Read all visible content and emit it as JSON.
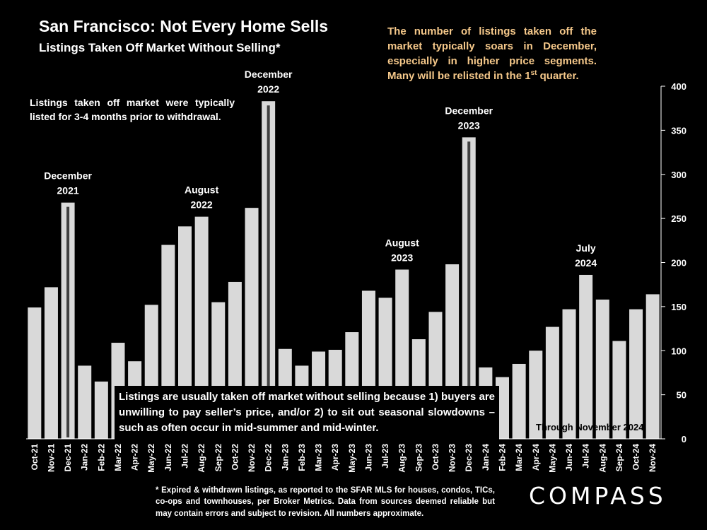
{
  "title": "San Francisco: Not Every Home Sells",
  "subtitle": "Listings Taken Off Market Without Selling*",
  "notes": {
    "top_right_main": "The number of listings taken off the market typically soars in December, especially in higher price segments. Many will be relisted in the 1",
    "top_right_sup": "st",
    "top_right_end": " quarter.",
    "left": "Listings taken off market were typically listed for 3-4 months prior to withdrawal.",
    "bottom": "Listings are usually taken off market without selling because 1) buyers are unwilling to pay seller’s price, and/or 2) to sit out seasonal slowdowns – such as often occur in mid-summer and mid-winter.",
    "through": "Through November 2024"
  },
  "footnote": "* Expired & withdrawn listings, as reported to the SFAR MLS for houses, condos, TICs, co-ops and townhouses, per Broker Metrics. Data from sources deemed reliable but may contain errors and subject to revision. All numbers approximate.",
  "logo": "COMPASS",
  "chart_data": {
    "type": "bar",
    "categories": [
      "Oct-21",
      "Nov-21",
      "Dec-21",
      "Jan-22",
      "Feb-22",
      "Mar-22",
      "Apr-22",
      "May-22",
      "Jun-22",
      "Jul-22",
      "Aug-22",
      "Sep-22",
      "Oct-22",
      "Nov-22",
      "Dec-22",
      "Jan-23",
      "Feb-23",
      "Mar-23",
      "Apr-23",
      "May-23",
      "Jun-23",
      "Jul-23",
      "Aug-23",
      "Sep-23",
      "Oct-23",
      "Nov-23",
      "Dec-23",
      "Jan-24",
      "Feb-24",
      "Mar-24",
      "Apr-24",
      "May-24",
      "Jun-24",
      "Jul-24",
      "Aug-24",
      "Sep-24",
      "Oct-24",
      "Nov-24"
    ],
    "values": [
      149,
      172,
      268,
      83,
      65,
      109,
      88,
      152,
      220,
      241,
      252,
      155,
      178,
      262,
      383,
      102,
      83,
      99,
      101,
      121,
      168,
      160,
      192,
      113,
      144,
      198,
      342,
      81,
      70,
      85,
      100,
      127,
      147,
      186,
      158,
      111,
      147,
      164
    ],
    "highlighted": [
      "Dec-21",
      "Dec-22",
      "Dec-23"
    ],
    "ylim": [
      0,
      400
    ],
    "yticks": [
      0,
      50,
      100,
      150,
      200,
      250,
      300,
      350,
      400
    ],
    "y_axis_side": "right",
    "grid": false,
    "bar_color": "#d9d9d9",
    "highlight_inner_color": "#404040",
    "annotations": [
      {
        "category": "Dec-21",
        "text": [
          "December",
          "2021"
        ]
      },
      {
        "category": "Aug-22",
        "text": [
          "August",
          "2022"
        ]
      },
      {
        "category": "Dec-22",
        "text": [
          "December",
          "2022"
        ]
      },
      {
        "category": "Aug-23",
        "text": [
          "August",
          "2023"
        ]
      },
      {
        "category": "Dec-23",
        "text": [
          "December",
          "2023"
        ]
      },
      {
        "category": "Jul-24",
        "text": [
          "July",
          "2024"
        ]
      }
    ]
  }
}
